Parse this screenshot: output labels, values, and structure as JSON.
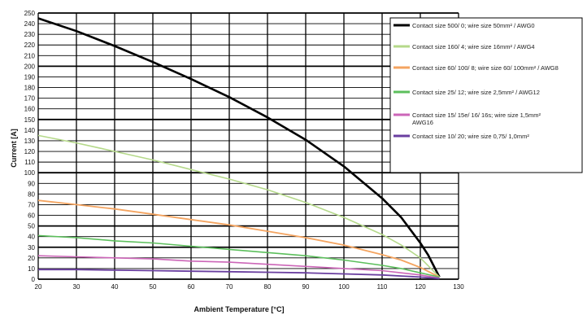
{
  "chart_data": {
    "type": "line",
    "title": "",
    "xlabel": "Ambient Temperature [°C]",
    "ylabel": "Current [A]",
    "xlim": [
      20,
      130
    ],
    "ylim": [
      0,
      250
    ],
    "x_ticks": [
      20,
      30,
      40,
      50,
      60,
      70,
      80,
      90,
      100,
      110,
      120,
      130
    ],
    "y_ticks": [
      0,
      10,
      20,
      30,
      40,
      50,
      60,
      70,
      80,
      90,
      100,
      110,
      120,
      130,
      140,
      150,
      160,
      170,
      180,
      190,
      200,
      210,
      220,
      230,
      240,
      250
    ],
    "grid": true,
    "legend_position": "top-right",
    "series": [
      {
        "name": "Contact size 500/ 0; wire size 50mm² / AWG0",
        "color": "#000000",
        "x": [
          20,
          30,
          40,
          50,
          60,
          70,
          80,
          90,
          100,
          110,
          115,
          120,
          122,
          125
        ],
        "y": [
          245,
          233,
          219,
          204,
          188,
          171,
          152,
          131,
          106,
          76,
          58,
          34,
          23,
          2
        ]
      },
      {
        "name": "Contact size 160/ 4; wire size 16mm² / AWG4",
        "color": "#b5d98a",
        "x": [
          20,
          30,
          40,
          50,
          60,
          70,
          80,
          90,
          100,
          110,
          115,
          120,
          125
        ],
        "y": [
          135,
          128,
          120,
          112,
          103,
          94,
          84,
          72,
          58,
          42,
          32,
          20,
          2
        ]
      },
      {
        "name": "Contact size 60/ 100/ 8; wire size 60/ 100mm² / AWG8",
        "color": "#f4a460",
        "x": [
          20,
          30,
          40,
          50,
          60,
          70,
          80,
          90,
          100,
          110,
          115,
          120,
          125
        ],
        "y": [
          74,
          70,
          66,
          61,
          56,
          51,
          45,
          39,
          32,
          23,
          18,
          11,
          2
        ]
      },
      {
        "name": "Contact size 25/ 12; wire size 2,5mm² / AWG12",
        "color": "#5cbf5c",
        "x": [
          20,
          30,
          40,
          50,
          60,
          70,
          80,
          90,
          100,
          110,
          115,
          120,
          125
        ],
        "y": [
          41,
          39,
          36,
          34,
          31,
          28,
          25,
          22,
          18,
          13,
          10,
          6,
          2
        ]
      },
      {
        "name": "Contact size 15/ 15e/ 16/ 16s; wire size 1,5mm² AWG16",
        "color": "#cc66b8",
        "x": [
          20,
          30,
          40,
          50,
          60,
          70,
          80,
          90,
          100,
          110,
          115,
          120,
          125
        ],
        "y": [
          22,
          21,
          20,
          19,
          17,
          16,
          14,
          12,
          10,
          8,
          6,
          4,
          1
        ]
      },
      {
        "name": "Contact size 10/ 20; wire size 0,75/ 1,0mm²",
        "color": "#6a3fa0",
        "x": [
          20,
          30,
          40,
          50,
          60,
          70,
          80,
          90,
          100,
          110,
          115,
          120,
          125
        ],
        "y": [
          9,
          9,
          8.5,
          8,
          7.5,
          7,
          6.5,
          6,
          5,
          4,
          3,
          2,
          0.5
        ]
      }
    ]
  }
}
